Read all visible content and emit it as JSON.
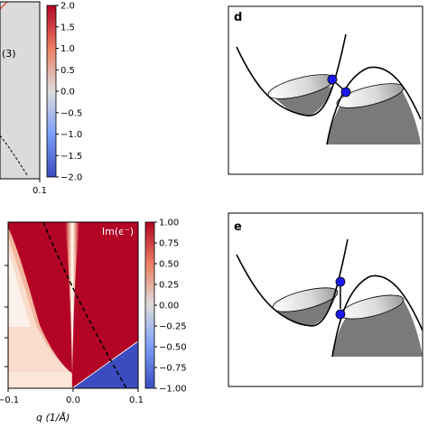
{
  "top_plot": {
    "label": "(3)",
    "colorbar_ticks": [
      "2.0",
      "1.5",
      "1.0",
      "0.5",
      "0.0",
      "−0.5",
      "−1.0",
      "−1.5",
      "−2.0"
    ],
    "colorbar_min": -2.0,
    "colorbar_max": 2.0,
    "x_tick": "0.1"
  },
  "bottom_plot": {
    "title": "Im(ϵ⁻)",
    "colorbar_ticks": [
      "1.00",
      "0.75",
      "0.50",
      "0.25",
      "0.00",
      "−0.25",
      "−0.50",
      "−0.75",
      "−1.00"
    ],
    "colorbar_min": -1.0,
    "colorbar_max": 1.0,
    "x_ticks": [
      "−0.1",
      "0.0",
      "0.1"
    ],
    "xlabel": "q (1/Å)"
  },
  "panel_d": {
    "label": "d"
  },
  "panel_e": {
    "label": "e"
  },
  "colors": {
    "red": "#b40426",
    "blue": "#3b4cc0",
    "neutral": "#dddcdc",
    "dot_blue": "#1a1aee",
    "fill_gray": "#7a7a7a"
  }
}
